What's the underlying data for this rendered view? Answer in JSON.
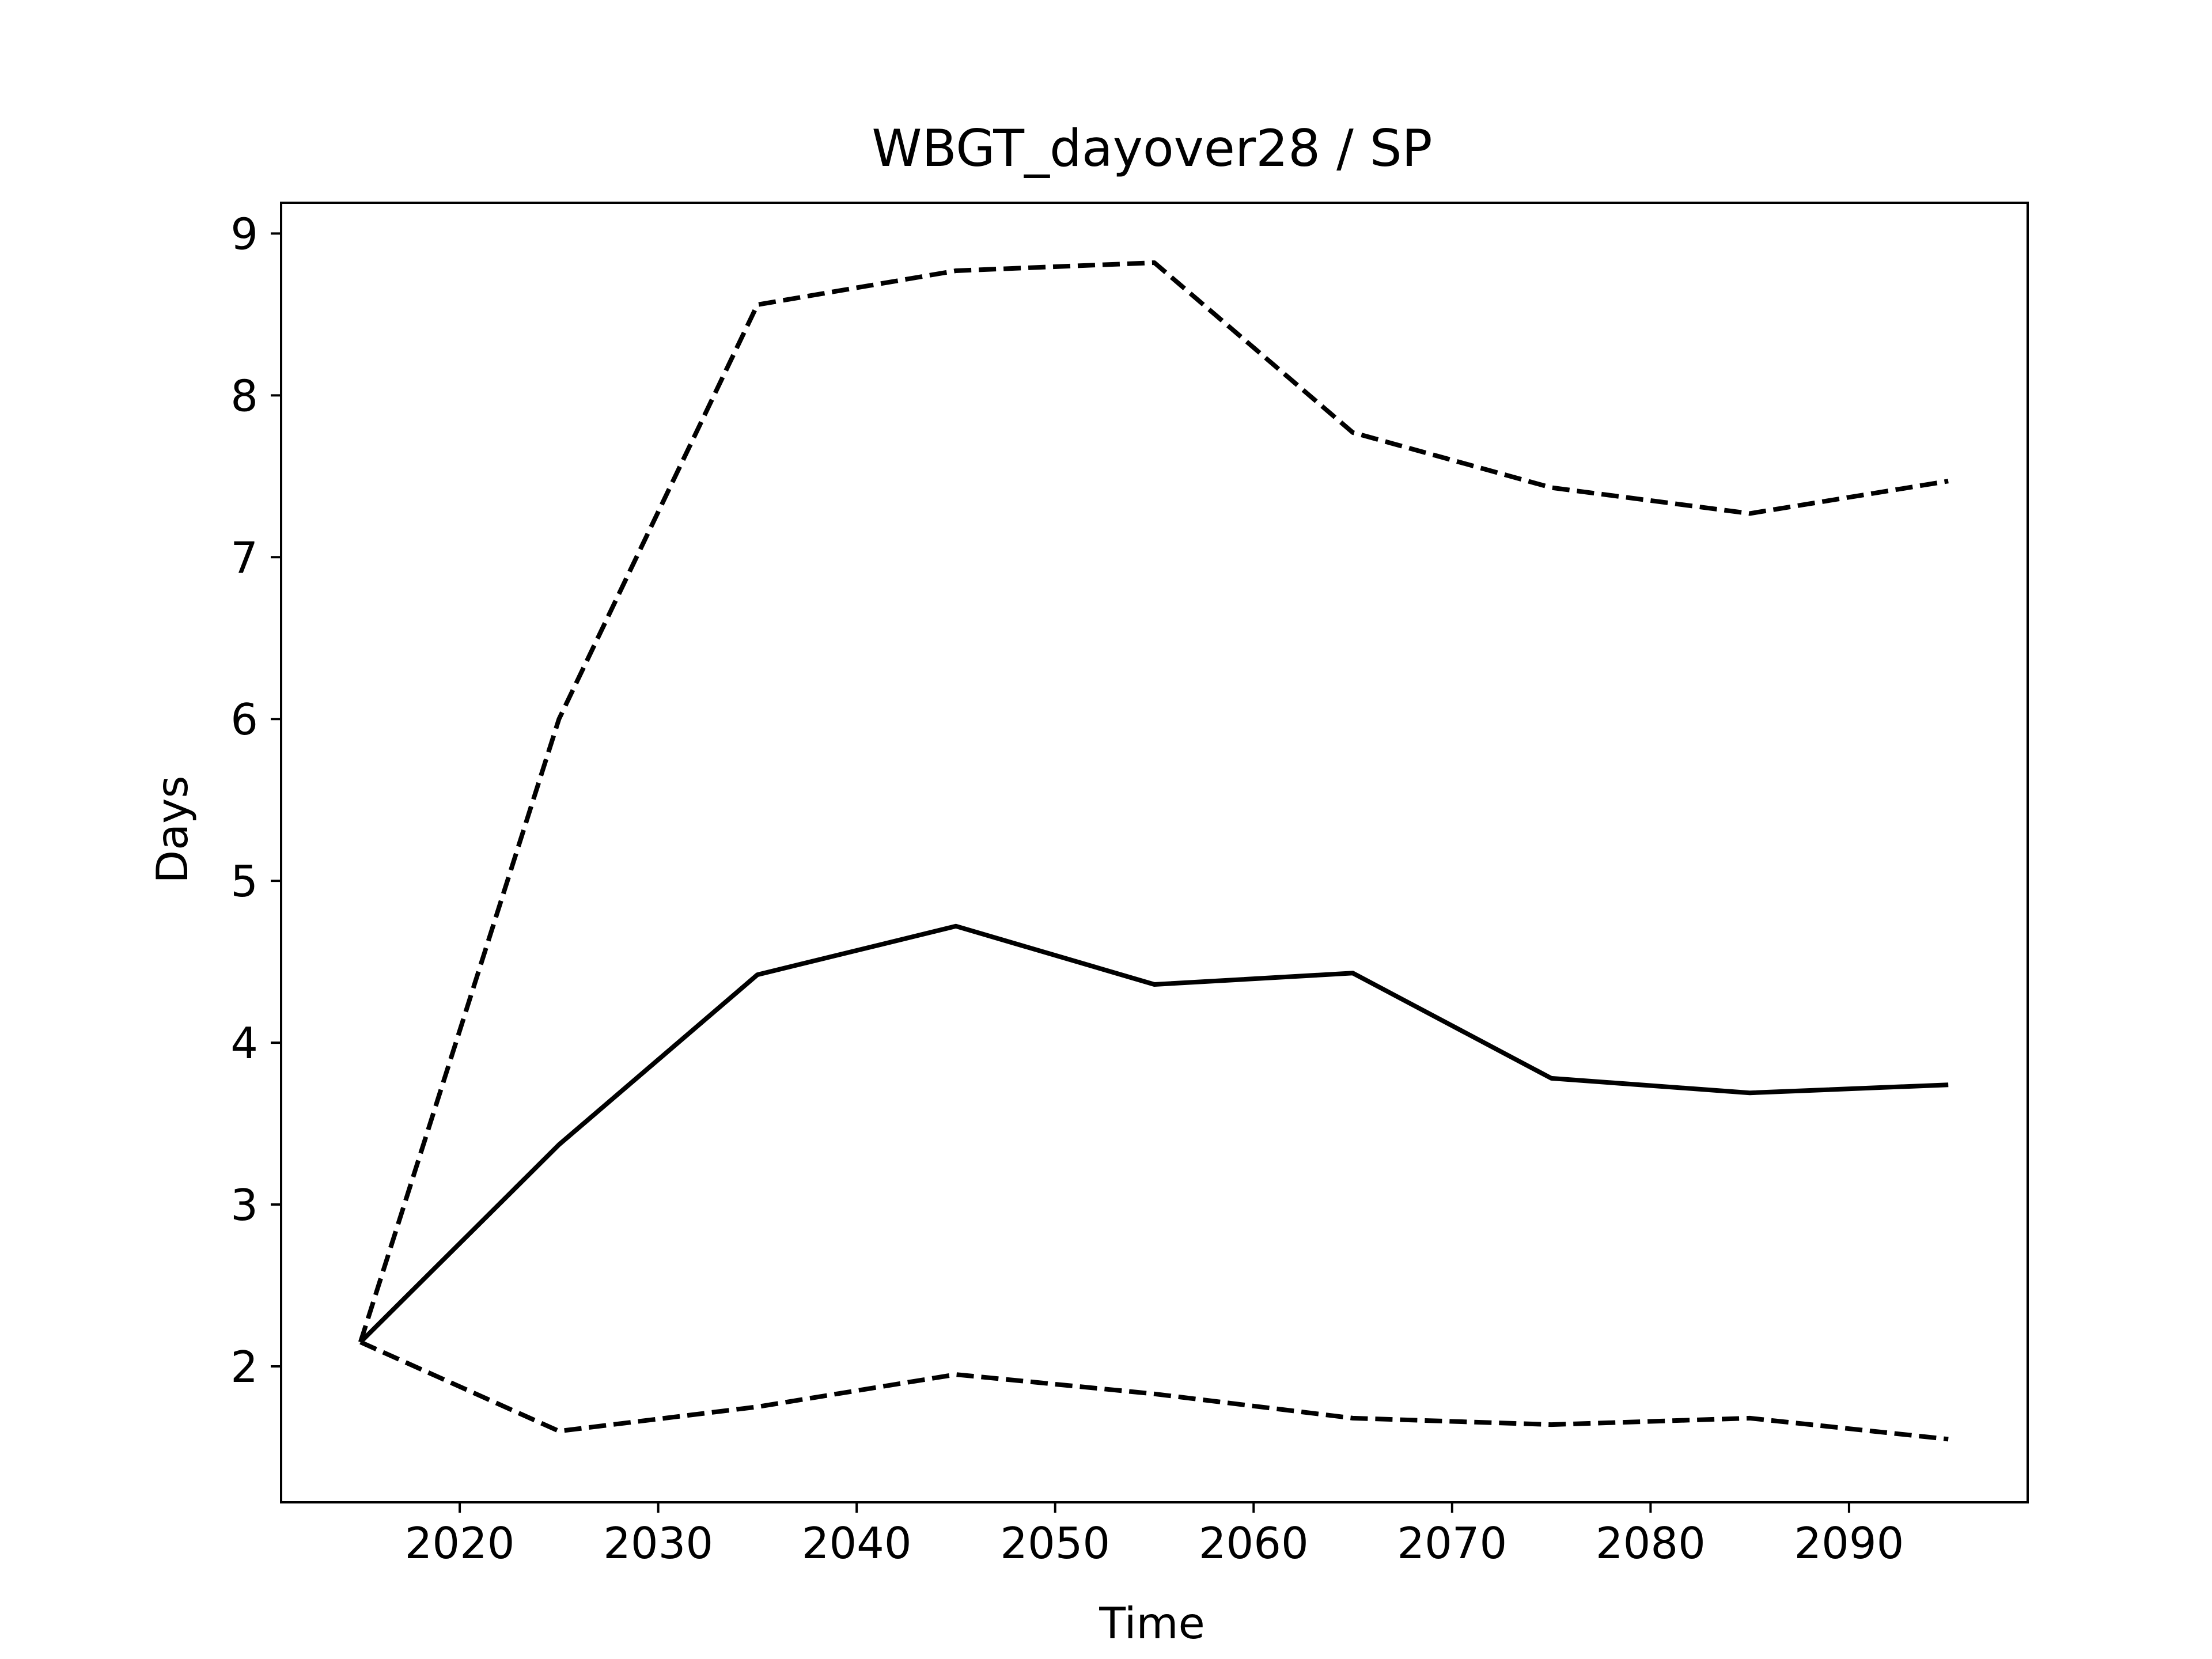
{
  "chart_data": {
    "type": "line",
    "title": "WBGT_dayover28 / SP",
    "xlabel": "Time",
    "ylabel": "Days",
    "xlim": [
      2011,
      2099
    ],
    "ylim": [
      1.16,
      9.19
    ],
    "xticks": [
      2020,
      2030,
      2040,
      2050,
      2060,
      2070,
      2080,
      2090
    ],
    "yticks": [
      2,
      3,
      4,
      5,
      6,
      7,
      8,
      9
    ],
    "grid": false,
    "x": [
      2015,
      2025,
      2035,
      2045,
      2055,
      2065,
      2075,
      2085,
      2095
    ],
    "series": [
      {
        "style": "solid",
        "color": "#000000",
        "values": [
          2.15,
          3.37,
          4.42,
          4.72,
          4.36,
          4.43,
          3.78,
          3.69,
          3.74
        ]
      },
      {
        "style": "dashed",
        "color": "#000000",
        "values": [
          2.15,
          6.0,
          8.56,
          8.77,
          8.82,
          7.77,
          7.43,
          7.27,
          7.47
        ]
      },
      {
        "style": "dashed",
        "color": "#000000",
        "values": [
          2.15,
          1.6,
          1.75,
          1.95,
          1.83,
          1.68,
          1.64,
          1.68,
          1.55
        ]
      }
    ]
  }
}
